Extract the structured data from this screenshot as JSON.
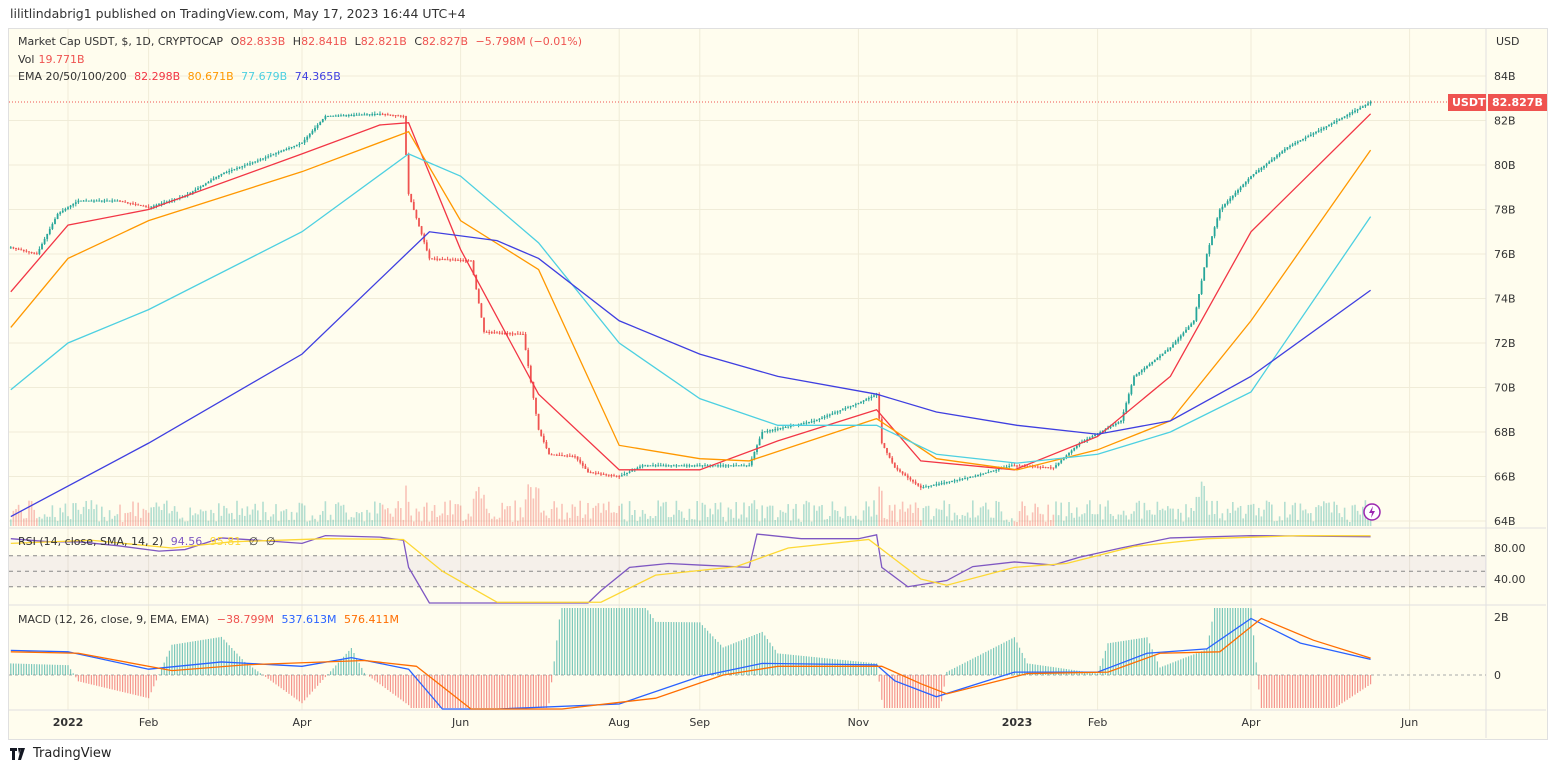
{
  "publisher": "lilitlindabrig1 published on TradingView.com, May 17, 2023 16:44 UTC+4",
  "legend": {
    "symbol": "Market Cap USDT, $, 1D, CRYPTOCAP",
    "o_label": "O",
    "o": "82.833B",
    "h_label": "H",
    "h": "82.841B",
    "l_label": "L",
    "l": "82.821B",
    "c_label": "C",
    "c": "82.827B",
    "change": "−5.798M (−0.01%)",
    "vol_label": "Vol",
    "vol": "19.771B",
    "ema_label": "EMA 20/50/100/200",
    "ema20": "82.298B",
    "ema50": "80.671B",
    "ema100": "77.679B",
    "ema200": "74.365B",
    "rsi_label": "RSI (14, close, SMA, 14, 2)",
    "rsi": "94.56",
    "rsi_ma": "95.81",
    "rsi_extra1": "∅",
    "rsi_extra2": "∅",
    "macd_label": "MACD (12, 26, close, 9, EMA, EMA)",
    "macd_hist": "−38.799M",
    "macd": "537.613M",
    "macd_signal": "576.411M"
  },
  "price_tag": {
    "symbol": "USDT",
    "value": "82.827B"
  },
  "branding": "TradingView",
  "colors": {
    "up": "#26a69a",
    "down": "#ef5350",
    "ema20": "#f23645",
    "ema50": "#ff9800",
    "ema100": "#4dd0e1",
    "ema200": "#3f3fe0",
    "rsi": "#7e57c2",
    "rsi_ma": "#fdd835",
    "macd": "#2962ff",
    "signal": "#ff6d00",
    "bg": "#fffdee"
  },
  "chart_data": [
    {
      "type": "candlestick",
      "currency_label": "USD",
      "y_ticks": [
        "84B",
        "82B",
        "80B",
        "78B",
        "76B",
        "74B",
        "72B",
        "70B",
        "68B",
        "66B",
        "64B"
      ],
      "y_tick_values": [
        84,
        82,
        80,
        78,
        76,
        74,
        72,
        70,
        68,
        66,
        64
      ],
      "ylim": [
        64,
        86
      ],
      "x_ticks": [
        {
          "label": "2022",
          "date": "2022-01-01"
        },
        {
          "label": "Feb",
          "date": "2022-02-01"
        },
        {
          "label": "Apr",
          "date": "2022-04-01"
        },
        {
          "label": "Jun",
          "date": "2022-06-01"
        },
        {
          "label": "Aug",
          "date": "2022-08-01"
        },
        {
          "label": "Sep",
          "date": "2022-09-01"
        },
        {
          "label": "Nov",
          "date": "2022-11-01"
        },
        {
          "label": "2023",
          "date": "2023-01-01"
        },
        {
          "label": "Feb",
          "date": "2023-02-01"
        },
        {
          "label": "Apr",
          "date": "2023-04-01"
        },
        {
          "label": "Jun",
          "date": "2023-06-01"
        }
      ],
      "close": [
        [
          "2021-12-10",
          76.3
        ],
        [
          "2021-12-20",
          76.0
        ],
        [
          "2021-12-28",
          77.8
        ],
        [
          "2022-01-05",
          78.4
        ],
        [
          "2022-01-20",
          78.4
        ],
        [
          "2022-02-01",
          78.1
        ],
        [
          "2022-02-15",
          78.6
        ],
        [
          "2022-03-01",
          79.6
        ],
        [
          "2022-03-15",
          80.2
        ],
        [
          "2022-04-01",
          81.0
        ],
        [
          "2022-04-10",
          82.2
        ],
        [
          "2022-05-01",
          82.3
        ],
        [
          "2022-05-10",
          82.2
        ],
        [
          "2022-05-12",
          78.7
        ],
        [
          "2022-05-20",
          75.8
        ],
        [
          "2022-06-05",
          75.7
        ],
        [
          "2022-06-10",
          72.5
        ],
        [
          "2022-06-25",
          72.4
        ],
        [
          "2022-07-01",
          68.1
        ],
        [
          "2022-07-05",
          67.0
        ],
        [
          "2022-07-15",
          66.9
        ],
        [
          "2022-07-20",
          66.2
        ],
        [
          "2022-08-01",
          66.0
        ],
        [
          "2022-08-10",
          66.5
        ],
        [
          "2022-09-01",
          66.5
        ],
        [
          "2022-09-20",
          66.5
        ],
        [
          "2022-09-25",
          68.0
        ],
        [
          "2022-10-15",
          68.5
        ],
        [
          "2022-11-01",
          69.3
        ],
        [
          "2022-11-08",
          69.7
        ],
        [
          "2022-11-10",
          67.5
        ],
        [
          "2022-11-15",
          66.4
        ],
        [
          "2022-11-25",
          65.5
        ],
        [
          "2022-12-15",
          66.0
        ],
        [
          "2022-12-30",
          66.5
        ],
        [
          "2023-01-15",
          66.4
        ],
        [
          "2023-01-25",
          67.5
        ],
        [
          "2023-02-10",
          68.5
        ],
        [
          "2023-02-15",
          70.5
        ],
        [
          "2023-03-01",
          71.8
        ],
        [
          "2023-03-10",
          73.0
        ],
        [
          "2023-03-15",
          76.0
        ],
        [
          "2023-03-20",
          78.0
        ],
        [
          "2023-04-01",
          79.5
        ],
        [
          "2023-04-15",
          80.8
        ],
        [
          "2023-05-01",
          81.8
        ],
        [
          "2023-05-17",
          82.83
        ]
      ],
      "series": [
        {
          "name": "EMA 20",
          "color_key": "ema20",
          "points": [
            [
              "2021-12-10",
              74.3
            ],
            [
              "2022-01-01",
              77.3
            ],
            [
              "2022-02-01",
              78.0
            ],
            [
              "2022-04-01",
              80.5
            ],
            [
              "2022-05-01",
              81.8
            ],
            [
              "2022-05-12",
              81.9
            ],
            [
              "2022-06-01",
              76.2
            ],
            [
              "2022-07-01",
              69.7
            ],
            [
              "2022-08-01",
              66.3
            ],
            [
              "2022-09-01",
              66.3
            ],
            [
              "2022-10-01",
              67.6
            ],
            [
              "2022-11-08",
              69.0
            ],
            [
              "2022-11-25",
              66.7
            ],
            [
              "2022-12-31",
              66.3
            ],
            [
              "2023-02-01",
              67.8
            ],
            [
              "2023-03-01",
              70.5
            ],
            [
              "2023-04-01",
              77.0
            ],
            [
              "2023-05-17",
              82.3
            ]
          ]
        },
        {
          "name": "EMA 50",
          "color_key": "ema50",
          "points": [
            [
              "2021-12-10",
              72.7
            ],
            [
              "2022-01-01",
              75.8
            ],
            [
              "2022-02-01",
              77.5
            ],
            [
              "2022-04-01",
              79.7
            ],
            [
              "2022-05-12",
              81.5
            ],
            [
              "2022-06-01",
              77.5
            ],
            [
              "2022-07-01",
              75.3
            ],
            [
              "2022-08-01",
              67.4
            ],
            [
              "2022-09-01",
              66.8
            ],
            [
              "2022-09-20",
              66.7
            ],
            [
              "2022-11-08",
              68.6
            ],
            [
              "2022-12-01",
              66.8
            ],
            [
              "2023-01-01",
              66.3
            ],
            [
              "2023-02-01",
              67.2
            ],
            [
              "2023-03-01",
              68.5
            ],
            [
              "2023-04-01",
              73.0
            ],
            [
              "2023-05-17",
              80.67
            ]
          ]
        },
        {
          "name": "EMA 100",
          "color_key": "ema100",
          "points": [
            [
              "2021-12-10",
              69.9
            ],
            [
              "2022-01-01",
              72.0
            ],
            [
              "2022-02-01",
              73.5
            ],
            [
              "2022-04-01",
              77.0
            ],
            [
              "2022-05-12",
              80.5
            ],
            [
              "2022-06-01",
              79.5
            ],
            [
              "2022-07-01",
              76.5
            ],
            [
              "2022-08-01",
              72.0
            ],
            [
              "2022-09-01",
              69.5
            ],
            [
              "2022-10-01",
              68.3
            ],
            [
              "2022-11-08",
              68.3
            ],
            [
              "2022-12-01",
              67.0
            ],
            [
              "2023-01-01",
              66.6
            ],
            [
              "2023-02-01",
              67.0
            ],
            [
              "2023-03-01",
              68.0
            ],
            [
              "2023-04-01",
              69.8
            ],
            [
              "2023-05-17",
              77.68
            ]
          ]
        },
        {
          "name": "EMA 200",
          "color_key": "ema200",
          "points": [
            [
              "2021-12-10",
              64.2
            ],
            [
              "2022-02-01",
              67.5
            ],
            [
              "2022-04-01",
              71.5
            ],
            [
              "2022-05-20",
              77.0
            ],
            [
              "2022-06-15",
              76.6
            ],
            [
              "2022-07-01",
              75.8
            ],
            [
              "2022-08-01",
              73.0
            ],
            [
              "2022-09-01",
              71.5
            ],
            [
              "2022-10-01",
              70.5
            ],
            [
              "2022-11-08",
              69.7
            ],
            [
              "2022-12-01",
              68.9
            ],
            [
              "2023-01-01",
              68.3
            ],
            [
              "2023-02-01",
              67.9
            ],
            [
              "2023-03-01",
              68.5
            ],
            [
              "2023-04-01",
              70.5
            ],
            [
              "2023-05-17",
              74.37
            ]
          ]
        }
      ]
    },
    {
      "type": "line",
      "title": "RSI (14, close, SMA, 14, 2)",
      "y_ticks": [
        "80.00",
        "40.00"
      ],
      "y_tick_values": [
        80,
        40
      ],
      "bands": [
        70,
        50,
        30
      ],
      "series": [
        {
          "name": "RSI",
          "color_key": "rsi",
          "points": [
            [
              "2021-12-10",
              92
            ],
            [
              "2021-12-25",
              88
            ],
            [
              "2022-01-05",
              88
            ],
            [
              "2022-01-20",
              83
            ],
            [
              "2022-02-05",
              76
            ],
            [
              "2022-02-15",
              78
            ],
            [
              "2022-03-01",
              93
            ],
            [
              "2022-03-15",
              90
            ],
            [
              "2022-04-01",
              86
            ],
            [
              "2022-04-10",
              96
            ],
            [
              "2022-05-01",
              94
            ],
            [
              "2022-05-10",
              90
            ],
            [
              "2022-05-12",
              55
            ],
            [
              "2022-05-20",
              5
            ],
            [
              "2022-07-20",
              8
            ],
            [
              "2022-07-25",
              25
            ],
            [
              "2022-08-05",
              55
            ],
            [
              "2022-08-20",
              60
            ],
            [
              "2022-09-01",
              58
            ],
            [
              "2022-09-20",
              55
            ],
            [
              "2022-09-23",
              98
            ],
            [
              "2022-10-10",
              92
            ],
            [
              "2022-11-01",
              92
            ],
            [
              "2022-11-08",
              97
            ],
            [
              "2022-11-10",
              55
            ],
            [
              "2022-11-20",
              30
            ],
            [
              "2022-12-05",
              38
            ],
            [
              "2022-12-15",
              56
            ],
            [
              "2022-12-31",
              62
            ],
            [
              "2023-01-15",
              58
            ],
            [
              "2023-01-25",
              68
            ],
            [
              "2023-02-10",
              80
            ],
            [
              "2023-03-01",
              93
            ],
            [
              "2023-04-01",
              96
            ],
            [
              "2023-05-17",
              94.56
            ]
          ]
        },
        {
          "name": "RSI MA",
          "color_key": "rsi_ma",
          "points": [
            [
              "2021-12-10",
              86
            ],
            [
              "2022-01-10",
              90
            ],
            [
              "2022-02-10",
              80
            ],
            [
              "2022-03-05",
              88
            ],
            [
              "2022-04-10",
              92
            ],
            [
              "2022-05-10",
              91
            ],
            [
              "2022-05-25",
              50
            ],
            [
              "2022-06-15",
              10
            ],
            [
              "2022-07-25",
              10
            ],
            [
              "2022-08-15",
              45
            ],
            [
              "2022-09-15",
              56
            ],
            [
              "2022-10-05",
              80
            ],
            [
              "2022-11-05",
              91
            ],
            [
              "2022-11-25",
              40
            ],
            [
              "2022-12-05",
              32
            ],
            [
              "2022-12-31",
              55
            ],
            [
              "2023-01-20",
              60
            ],
            [
              "2023-02-15",
              82
            ],
            [
              "2023-03-15",
              92
            ],
            [
              "2023-04-20",
              96
            ],
            [
              "2023-05-17",
              95.81
            ]
          ]
        }
      ]
    },
    {
      "type": "line",
      "title": "MACD (12, 26, close, 9, EMA, EMA)",
      "y_ticks": [
        "2B",
        "0"
      ],
      "y_tick_values": [
        2,
        0
      ],
      "unit": "B",
      "series": [
        {
          "name": "MACD",
          "color_key": "macd",
          "points": [
            [
              "2021-12-10",
              0.85
            ],
            [
              "2022-01-01",
              0.8
            ],
            [
              "2022-02-01",
              0.2
            ],
            [
              "2022-03-01",
              0.45
            ],
            [
              "2022-04-01",
              0.3
            ],
            [
              "2022-04-20",
              0.6
            ],
            [
              "2022-05-12",
              0.2
            ],
            [
              "2022-05-25",
              -1.5
            ],
            [
              "2022-06-15",
              -3.5
            ],
            [
              "2022-08-01",
              -1.0
            ],
            [
              "2022-09-01",
              -0.05
            ],
            [
              "2022-09-25",
              0.4
            ],
            [
              "2022-11-08",
              0.35
            ],
            [
              "2022-11-15",
              -0.2
            ],
            [
              "2022-12-01",
              -0.75
            ],
            [
              "2022-12-31",
              0.1
            ],
            [
              "2023-02-01",
              0.1
            ],
            [
              "2023-02-20",
              0.75
            ],
            [
              "2023-03-15",
              0.9
            ],
            [
              "2023-04-01",
              1.95
            ],
            [
              "2023-04-20",
              1.1
            ],
            [
              "2023-05-17",
              0.54
            ]
          ]
        },
        {
          "name": "Signal",
          "color_key": "signal",
          "points": [
            [
              "2021-12-10",
              0.8
            ],
            [
              "2022-01-05",
              0.75
            ],
            [
              "2022-02-10",
              0.15
            ],
            [
              "2022-03-10",
              0.35
            ],
            [
              "2022-04-25",
              0.5
            ],
            [
              "2022-05-15",
              0.3
            ],
            [
              "2022-06-05",
              -1.2
            ],
            [
              "2022-07-10",
              -2.5
            ],
            [
              "2022-08-15",
              -0.8
            ],
            [
              "2022-09-10",
              0.0
            ],
            [
              "2022-10-01",
              0.3
            ],
            [
              "2022-11-10",
              0.3
            ],
            [
              "2022-11-25",
              -0.3
            ],
            [
              "2022-12-05",
              -0.65
            ],
            [
              "2023-01-05",
              0.05
            ],
            [
              "2023-02-05",
              0.1
            ],
            [
              "2023-02-25",
              0.75
            ],
            [
              "2023-03-20",
              0.8
            ],
            [
              "2023-04-05",
              1.95
            ],
            [
              "2023-04-25",
              1.2
            ],
            [
              "2023-05-17",
              0.58
            ]
          ]
        }
      ]
    }
  ]
}
